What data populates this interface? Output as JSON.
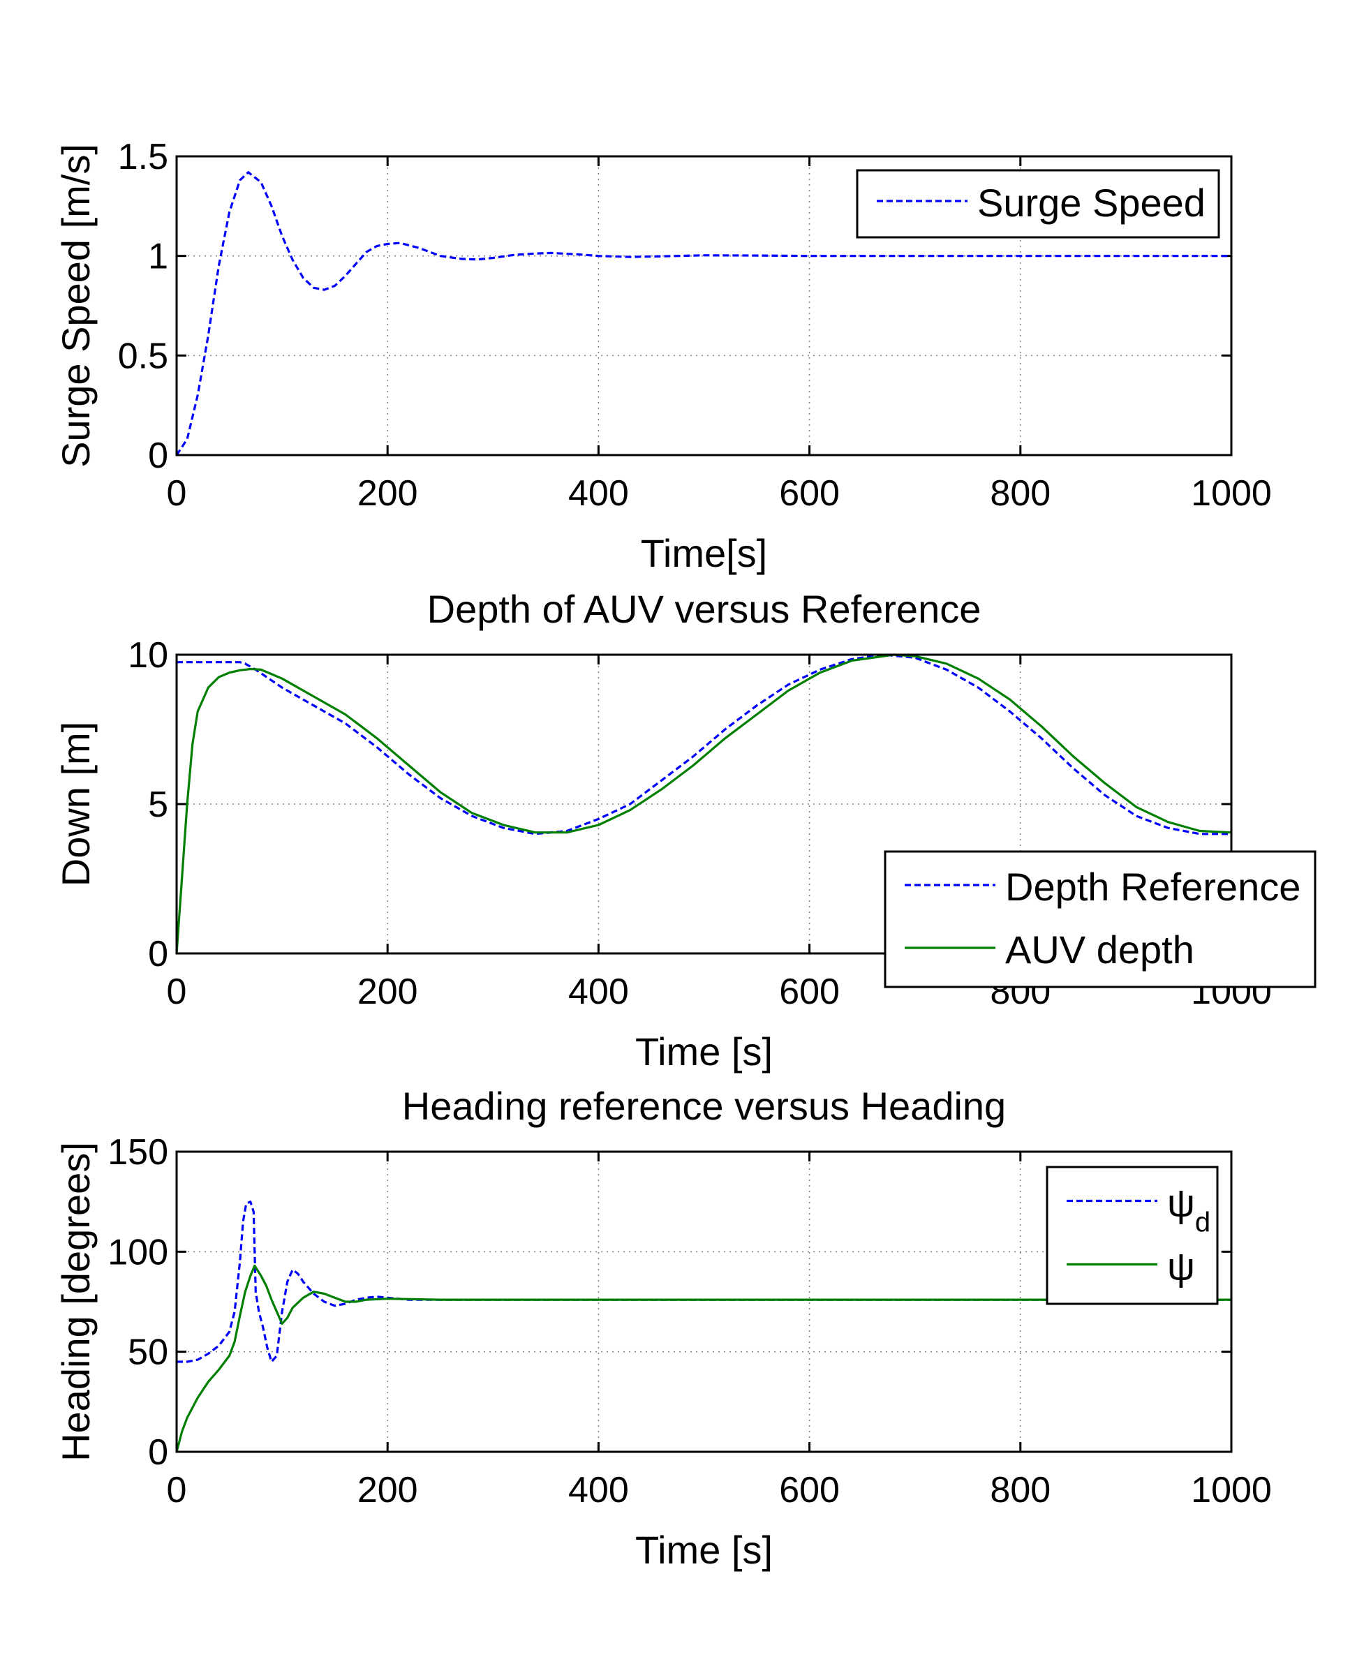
{
  "chart_data": [
    {
      "type": "line",
      "title": "",
      "xlabel": "Time[s]",
      "ylabel": "Surge Speed [m/s]",
      "xlim": [
        0,
        1000
      ],
      "ylim": [
        0,
        1.5
      ],
      "xticks": [
        0,
        200,
        400,
        600,
        800,
        1000
      ],
      "yticks": [
        0,
        0.5,
        1,
        1.5
      ],
      "xtick_labels": [
        "0",
        "200",
        "400",
        "600",
        "800",
        "1000"
      ],
      "ytick_labels": [
        "0",
        "0.5",
        "1",
        "1.5"
      ],
      "grid": true,
      "legend_position": "top-right",
      "series": [
        {
          "name": "Surge Speed",
          "color": "#0000ff",
          "style": "dashed",
          "x": [
            0,
            10,
            20,
            30,
            40,
            50,
            60,
            68,
            80,
            90,
            100,
            110,
            120,
            130,
            140,
            150,
            160,
            170,
            180,
            190,
            200,
            212,
            230,
            250,
            270,
            285,
            300,
            320,
            340,
            355,
            380,
            400,
            430,
            460,
            500,
            550,
            600,
            700,
            800,
            900,
            1000
          ],
          "y": [
            0,
            0.08,
            0.3,
            0.6,
            0.95,
            1.22,
            1.38,
            1.42,
            1.37,
            1.25,
            1.1,
            0.98,
            0.89,
            0.84,
            0.83,
            0.85,
            0.9,
            0.96,
            1.02,
            1.05,
            1.06,
            1.065,
            1.04,
            1.0,
            0.985,
            0.982,
            0.99,
            1.005,
            1.012,
            1.015,
            1.008,
            1.0,
            0.995,
            0.998,
            1.003,
            1.002,
            1.0,
            1.0,
            1.0,
            1.0,
            1.0
          ]
        }
      ]
    },
    {
      "type": "line",
      "title": "Depth of AUV versus Reference",
      "xlabel": "Time [s]",
      "ylabel": "Down [m]",
      "xlim": [
        0,
        1000
      ],
      "ylim": [
        0,
        10
      ],
      "xticks": [
        0,
        200,
        400,
        600,
        800,
        1000
      ],
      "yticks": [
        0,
        5,
        10
      ],
      "xtick_labels": [
        "0",
        "200",
        "400",
        "600",
        "800",
        "1000"
      ],
      "ytick_labels": [
        "0",
        "5",
        "10"
      ],
      "grid": true,
      "legend_position": "bottom-right",
      "series": [
        {
          "name": "Depth Reference",
          "color": "#0000ff",
          "style": "dashed",
          "x": [
            0,
            20,
            40,
            60,
            65,
            75,
            100,
            130,
            160,
            190,
            220,
            250,
            280,
            310,
            340,
            370,
            400,
            430,
            460,
            490,
            520,
            550,
            580,
            610,
            640,
            670,
            700,
            730,
            760,
            790,
            820,
            850,
            880,
            910,
            940,
            970,
            1000
          ],
          "y": [
            9.75,
            9.75,
            9.75,
            9.75,
            9.7,
            9.5,
            8.9,
            8.3,
            7.7,
            6.9,
            6.0,
            5.2,
            4.6,
            4.2,
            4.0,
            4.1,
            4.5,
            5.0,
            5.8,
            6.6,
            7.5,
            8.3,
            9.0,
            9.5,
            9.85,
            10.0,
            9.9,
            9.5,
            8.9,
            8.1,
            7.2,
            6.2,
            5.3,
            4.6,
            4.2,
            4.0,
            4.0
          ]
        },
        {
          "name": "AUV depth",
          "color": "#007f00",
          "style": "solid",
          "x": [
            0,
            5,
            10,
            15,
            20,
            30,
            40,
            50,
            60,
            70,
            80,
            100,
            130,
            160,
            190,
            220,
            250,
            280,
            310,
            340,
            370,
            400,
            430,
            460,
            490,
            520,
            550,
            580,
            610,
            640,
            680,
            700,
            730,
            760,
            790,
            820,
            850,
            880,
            910,
            940,
            970,
            1000
          ],
          "y": [
            0,
            2.5,
            5.0,
            7.0,
            8.1,
            8.9,
            9.25,
            9.4,
            9.48,
            9.52,
            9.5,
            9.2,
            8.6,
            8.0,
            7.2,
            6.3,
            5.4,
            4.7,
            4.3,
            4.05,
            4.05,
            4.3,
            4.8,
            5.5,
            6.3,
            7.2,
            8.0,
            8.8,
            9.4,
            9.8,
            10.0,
            9.95,
            9.7,
            9.2,
            8.5,
            7.6,
            6.6,
            5.7,
            4.9,
            4.4,
            4.1,
            4.05
          ]
        }
      ]
    },
    {
      "type": "line",
      "title": "Heading reference versus Heading",
      "xlabel": "Time [s]",
      "ylabel": "Heading [degrees]",
      "xlim": [
        0,
        1000
      ],
      "ylim": [
        0,
        150
      ],
      "xticks": [
        0,
        200,
        400,
        600,
        800,
        1000
      ],
      "yticks": [
        0,
        50,
        100,
        150
      ],
      "xtick_labels": [
        "0",
        "200",
        "400",
        "600",
        "800",
        "1000"
      ],
      "ytick_labels": [
        "0",
        "50",
        "100",
        "150"
      ],
      "grid": true,
      "legend_position": "top-right",
      "series": [
        {
          "name": "ψ",
          "name_subscript": "d",
          "color": "#0000ff",
          "style": "dashed",
          "x": [
            0,
            10,
            20,
            30,
            40,
            50,
            55,
            60,
            63,
            66,
            70,
            73,
            75,
            78,
            82,
            86,
            90,
            95,
            100,
            105,
            110,
            115,
            120,
            130,
            140,
            150,
            160,
            170,
            180,
            190,
            200,
            220,
            250,
            300,
            400,
            500,
            700,
            1000
          ],
          "y": [
            45,
            45,
            46,
            49,
            53,
            60,
            70,
            95,
            115,
            124,
            125,
            120,
            80,
            70,
            62,
            52,
            45,
            48,
            70,
            85,
            91,
            89,
            85,
            79,
            75,
            73,
            74,
            76,
            77,
            77.5,
            77,
            76,
            76,
            76,
            76,
            76,
            76,
            76
          ]
        },
        {
          "name": "ψ",
          "name_subscript": "",
          "color": "#007f00",
          "style": "solid",
          "x": [
            0,
            5,
            10,
            20,
            30,
            40,
            50,
            55,
            60,
            65,
            70,
            74,
            80,
            85,
            90,
            95,
            100,
            105,
            110,
            120,
            130,
            140,
            150,
            160,
            170,
            180,
            200,
            250,
            300,
            400,
            600,
            800,
            1000
          ],
          "y": [
            0,
            10,
            17,
            27,
            35,
            41,
            48,
            55,
            68,
            80,
            88,
            93,
            88,
            83,
            76,
            70,
            64,
            67,
            72,
            77,
            80,
            79,
            77,
            75,
            75,
            76,
            76.5,
            76,
            76,
            76,
            76,
            76,
            76
          ]
        }
      ]
    }
  ]
}
